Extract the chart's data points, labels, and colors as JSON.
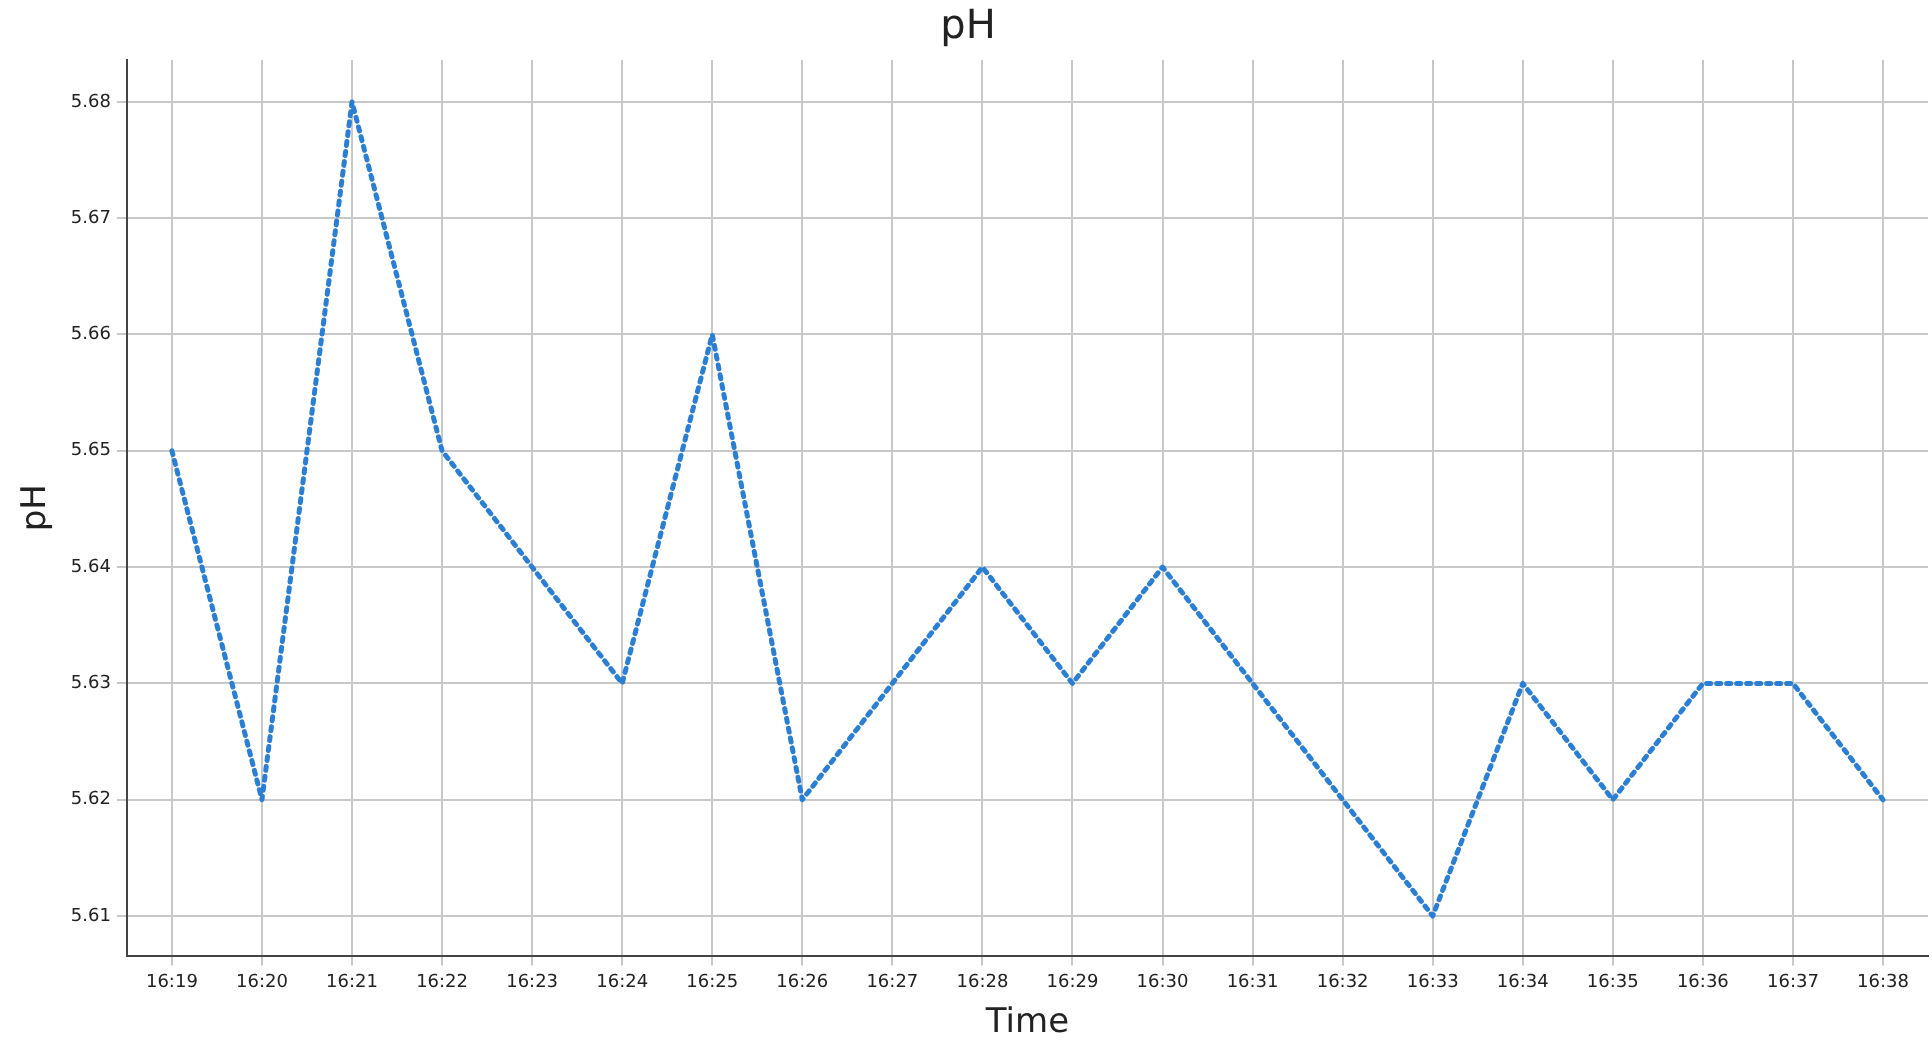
{
  "chart_data": {
    "type": "line",
    "title": "pH",
    "xlabel": "Time",
    "ylabel": "pH",
    "categories": [
      "16:19",
      "16:20",
      "16:21",
      "16:22",
      "16:23",
      "16:24",
      "16:25",
      "16:26",
      "16:27",
      "16:28",
      "16:29",
      "16:30",
      "16:31",
      "16:32",
      "16:33",
      "16:34",
      "16:35",
      "16:36",
      "16:37",
      "16:38"
    ],
    "series": [
      {
        "color": "#2a7fd4",
        "values": [
          5.65,
          5.62,
          5.68,
          5.65,
          5.64,
          5.63,
          5.66,
          5.62,
          5.63,
          5.64,
          5.63,
          5.64,
          5.63,
          5.62,
          5.61,
          5.63,
          5.62,
          5.63,
          5.63,
          5.62
        ]
      }
    ],
    "ylim": [
      5.6066,
      5.6836
    ],
    "yticks": [
      5.61,
      5.62,
      5.63,
      5.64,
      5.65,
      5.66,
      5.67,
      5.68
    ],
    "grid": true,
    "legend": false,
    "marker": "none",
    "line_style": "dotted"
  }
}
